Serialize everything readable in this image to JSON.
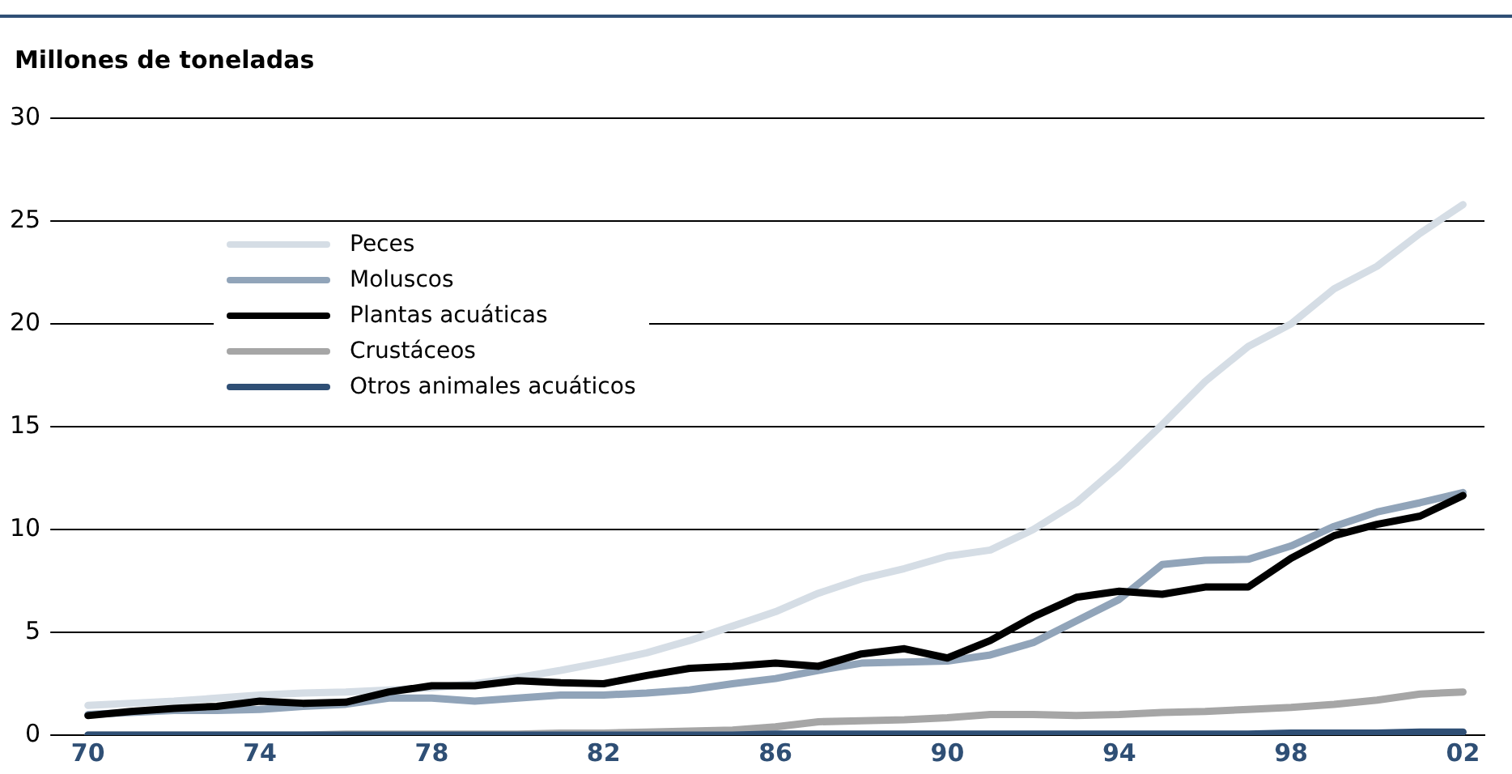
{
  "chart_data": {
    "type": "line",
    "ylabel": "Millones de toneladas",
    "x": [
      1970,
      1971,
      1972,
      1973,
      1974,
      1975,
      1976,
      1977,
      1978,
      1979,
      1980,
      1981,
      1982,
      1983,
      1984,
      1985,
      1986,
      1987,
      1988,
      1989,
      1990,
      1991,
      1992,
      1993,
      1994,
      1995,
      1996,
      1997,
      1998,
      1999,
      2000,
      2001,
      2002
    ],
    "xlim": [
      1969.5,
      2002.5
    ],
    "xticks": [
      {
        "value": 1970,
        "label": "70"
      },
      {
        "value": 1974,
        "label": "74"
      },
      {
        "value": 1978,
        "label": "78"
      },
      {
        "value": 1982,
        "label": "82"
      },
      {
        "value": 1986,
        "label": "86"
      },
      {
        "value": 1990,
        "label": "90"
      },
      {
        "value": 1994,
        "label": "94"
      },
      {
        "value": 1998,
        "label": "98"
      },
      {
        "value": 2002,
        "label": "02"
      }
    ],
    "ylim": [
      0,
      30
    ],
    "yticks": [
      0,
      5,
      10,
      15,
      20,
      25,
      30
    ],
    "grid": "y",
    "legend": "top left",
    "marker": "none",
    "line_style": "solid",
    "series": [
      {
        "name": "Peces",
        "color": "#d5dde5",
        "values": [
          1.45,
          1.55,
          1.65,
          1.8,
          1.95,
          2.05,
          2.1,
          2.2,
          2.3,
          2.5,
          2.8,
          3.15,
          3.55,
          4.0,
          4.6,
          5.3,
          6.0,
          6.9,
          7.6,
          8.1,
          8.7,
          9.0,
          10.0,
          11.3,
          13.1,
          15.1,
          17.2,
          18.9,
          20.0,
          21.7,
          22.8,
          24.4,
          25.8
        ]
      },
      {
        "name": "Moluscos",
        "color": "#91a4b9",
        "values": [
          1.0,
          1.1,
          1.2,
          1.2,
          1.25,
          1.4,
          1.5,
          1.8,
          1.8,
          1.65,
          1.8,
          1.95,
          1.95,
          2.05,
          2.2,
          2.5,
          2.75,
          3.15,
          3.5,
          3.55,
          3.6,
          3.9,
          4.5,
          5.55,
          6.6,
          8.3,
          8.5,
          8.55,
          9.2,
          10.15,
          10.85,
          11.3,
          11.8
        ]
      },
      {
        "name": "Plantas acuáticas",
        "color": "#000000",
        "values": [
          0.95,
          1.15,
          1.3,
          1.4,
          1.65,
          1.55,
          1.6,
          2.1,
          2.4,
          2.4,
          2.65,
          2.55,
          2.5,
          2.9,
          3.25,
          3.35,
          3.5,
          3.35,
          3.95,
          4.2,
          3.75,
          4.6,
          5.75,
          6.7,
          7.0,
          6.85,
          7.2,
          7.2,
          8.6,
          9.7,
          10.25,
          10.65,
          11.65
        ]
      },
      {
        "name": "Crustáceos",
        "color": "#a6a6a6",
        "values": [
          0.0,
          0.0,
          0.0,
          0.0,
          0.0,
          0.0,
          0.05,
          0.05,
          0.05,
          0.05,
          0.05,
          0.1,
          0.1,
          0.15,
          0.2,
          0.25,
          0.4,
          0.65,
          0.7,
          0.75,
          0.85,
          1.0,
          1.0,
          0.95,
          1.0,
          1.1,
          1.15,
          1.25,
          1.35,
          1.5,
          1.7,
          2.0,
          2.1
        ]
      },
      {
        "name": "Otros animales acuáticos",
        "color": "#2f4f75",
        "values": [
          0.0,
          0.0,
          0.0,
          0.0,
          0.0,
          0.0,
          0.0,
          0.0,
          0.0,
          0.0,
          0.0,
          0.0,
          0.0,
          0.0,
          0.0,
          0.0,
          0.05,
          0.05,
          0.05,
          0.05,
          0.05,
          0.05,
          0.05,
          0.05,
          0.05,
          0.05,
          0.05,
          0.05,
          0.1,
          0.1,
          0.1,
          0.15,
          0.15
        ]
      }
    ]
  }
}
